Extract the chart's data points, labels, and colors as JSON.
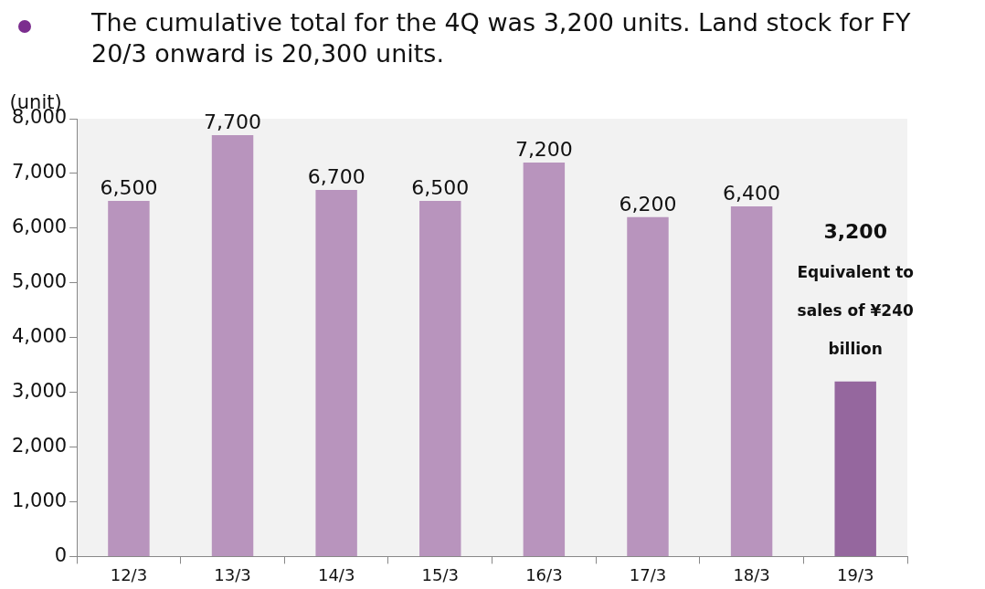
{
  "chart_data": {
    "type": "bar",
    "title": "The cumulative total for the 4Q was 3,200 units. Land stock for FY 20/3 onward is 20,300 units.",
    "ylabel": "(unit)",
    "categories": [
      "12/3",
      "13/3",
      "14/3",
      "15/3",
      "16/3",
      "17/3",
      "18/3",
      "19/3"
    ],
    "values": [
      6500,
      7700,
      6700,
      6500,
      7200,
      6200,
      6400,
      3200
    ],
    "value_labels": [
      "6,500",
      "7,700",
      "6,700",
      "6,500",
      "7,200",
      "6,200",
      "6,400",
      null
    ],
    "colors": [
      "#b894bd",
      "#b894bd",
      "#b894bd",
      "#b894bd",
      "#b894bd",
      "#b894bd",
      "#b894bd",
      "#95679e"
    ],
    "ylim": [
      0,
      8000
    ],
    "yticks": [
      0,
      {
        "value": 1000,
        "label": "1,000"
      },
      {
        "value": 2000,
        "label": "2,000"
      },
      {
        "value": 3000,
        "label": "3,000"
      },
      {
        "value": 4000,
        "label": "4,000"
      },
      {
        "value": 5000,
        "label": "5,000"
      },
      {
        "value": 6000,
        "label": "6,000"
      },
      {
        "value": 7000,
        "label": "7,000"
      },
      {
        "value": 8000,
        "label": "8,000"
      }
    ],
    "grid": false,
    "legend": false,
    "annotations": [
      "3,200",
      "Equivalent to sales of ¥240 billion"
    ]
  }
}
